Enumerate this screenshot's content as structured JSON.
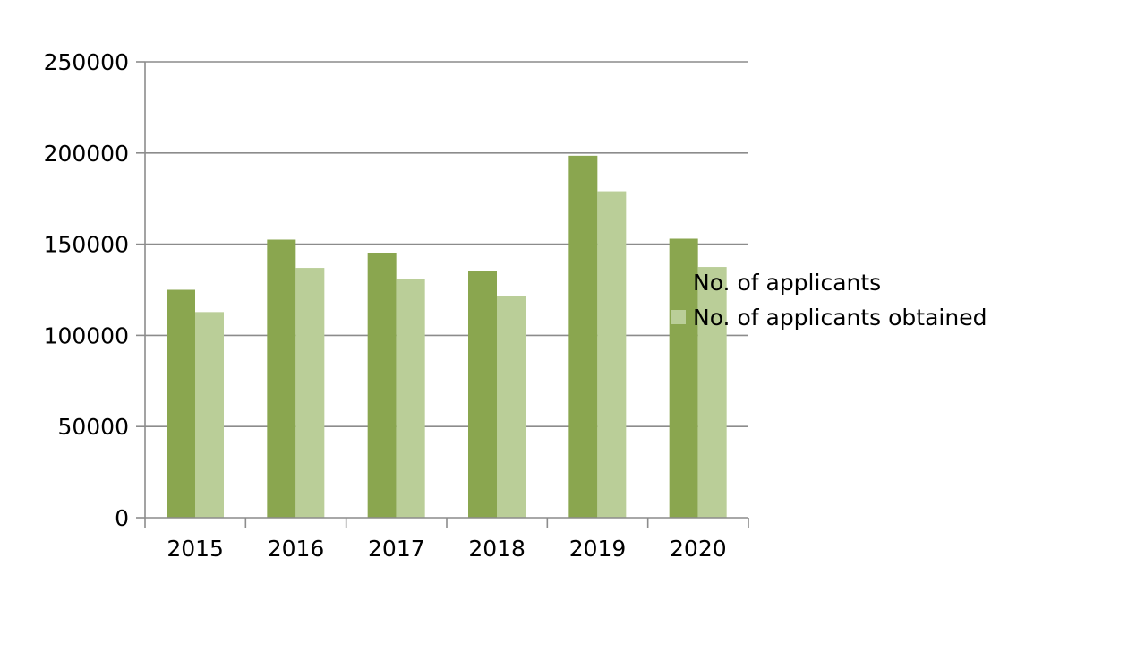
{
  "chart_data": {
    "type": "bar",
    "title": "",
    "xlabel": "",
    "ylabel": "",
    "categories": [
      "2015",
      "2016",
      "2017",
      "2018",
      "2019",
      "2020"
    ],
    "series": [
      {
        "name": "No. of applicants",
        "color": "#8aa64f",
        "values": [
          125000,
          152500,
          145000,
          135500,
          198500,
          153000
        ]
      },
      {
        "name": "No. of applicants obtained",
        "color": "#bace98",
        "values": [
          112800,
          137000,
          131000,
          121500,
          179000,
          137500
        ]
      }
    ],
    "ylim": [
      0,
      250000
    ],
    "yticks": [
      "0",
      "50000",
      "100000",
      "150000",
      "200000",
      "250000"
    ],
    "grid": true,
    "legend_position": "right"
  }
}
